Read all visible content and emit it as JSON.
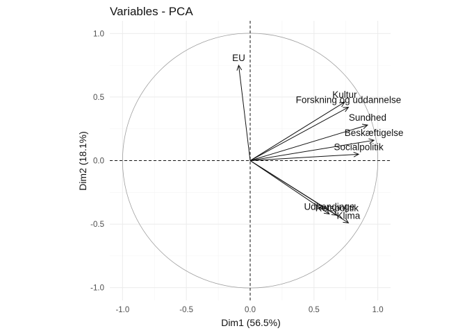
{
  "chart_data": {
    "type": "scatter",
    "subtype": "pca-correlation-circle",
    "title": "Variables - PCA",
    "xlabel": "Dim1 (56.5%)",
    "ylabel": "Dim2 (18.1%)",
    "xlim": [
      -1.1,
      1.1
    ],
    "ylim": [
      -1.1,
      1.1
    ],
    "xticks": [
      -1.0,
      -0.5,
      0.0,
      0.5,
      1.0
    ],
    "yticks": [
      -1.0,
      -0.5,
      0.0,
      0.5,
      1.0
    ],
    "xtick_labels": [
      "-1.0",
      "-0.5",
      "0.0",
      "0.5",
      "1.0"
    ],
    "ytick_labels": [
      "-1.0",
      "-0.5",
      "0.0",
      "0.5",
      "1.0"
    ],
    "grid": true,
    "unit_circle": true,
    "reference_lines": {
      "x": 0,
      "y": 0,
      "style": "dashed"
    },
    "variables": [
      {
        "name": "EU",
        "x": -0.09,
        "y": 0.75
      },
      {
        "name": "Kultur",
        "x": 0.74,
        "y": 0.46
      },
      {
        "name": "Forskning og uddannelse",
        "x": 0.77,
        "y": 0.42
      },
      {
        "name": "Sundhed",
        "x": 0.92,
        "y": 0.28
      },
      {
        "name": "Beskæftigelse",
        "x": 0.97,
        "y": 0.16
      },
      {
        "name": "Socialpolitik",
        "x": 0.85,
        "y": 0.05
      },
      {
        "name": "Udlændinge",
        "x": 0.62,
        "y": -0.42
      },
      {
        "name": "Retspolitik",
        "x": 0.68,
        "y": -0.43
      },
      {
        "name": "Klima",
        "x": 0.77,
        "y": -0.49
      }
    ]
  }
}
